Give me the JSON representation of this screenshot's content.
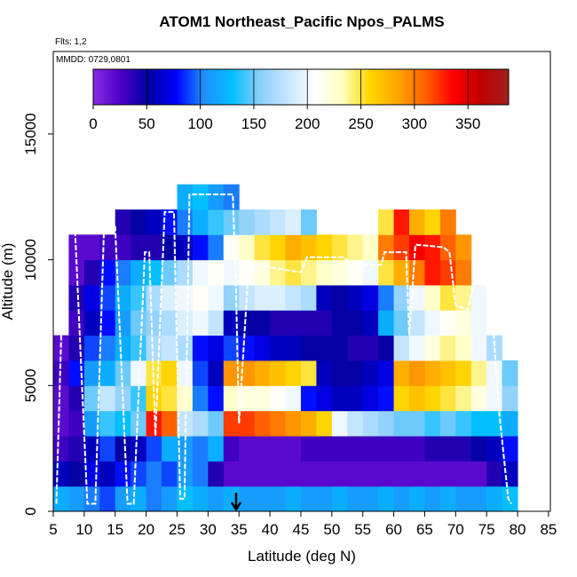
{
  "chart_data": {
    "type": "heatmap",
    "title": "ATOM1 Northeast_Pacific Npos_PALMS",
    "subtitle": "Flts: 1,2",
    "annotation": "MMDD: 0729,0801",
    "xlabel": "Latitude (deg N)",
    "ylabel": "Altitude (m)",
    "xlim": [
      5,
      85.3
    ],
    "ylim": [
      0,
      18280
    ],
    "xticks": [
      5,
      10,
      15,
      20,
      25,
      30,
      35,
      40,
      45,
      50,
      55,
      60,
      65,
      70,
      75,
      80,
      85
    ],
    "yticks": [
      0,
      5000,
      10000,
      15000
    ],
    "clim": [
      0,
      388
    ],
    "cticks": [
      0,
      50,
      100,
      150,
      200,
      250,
      300,
      350
    ],
    "colorscale": [
      "#8a2be2",
      "#4b00c8",
      "#0000a0",
      "#0000ff",
      "#1e90ff",
      "#00bfff",
      "#87cefa",
      "#c6e6ff",
      "#ffffff",
      "#ffffc0",
      "#ffd700",
      "#ffa500",
      "#ff6000",
      "#ff0000",
      "#c00000",
      "#a02020"
    ],
    "x_edges": [
      5,
      7.5,
      10,
      12.5,
      15,
      17.5,
      20,
      22.5,
      25,
      27.5,
      30,
      32.5,
      35,
      37.5,
      40,
      42.5,
      45,
      47.5,
      50,
      52.5,
      55,
      57.5,
      60,
      62.5,
      65,
      67.5,
      70,
      72.5,
      75,
      77.5,
      80
    ],
    "y_edges": [
      0,
      1000,
      2000,
      3000,
      4000,
      5000,
      6000,
      7000,
      8000,
      9000,
      10000,
      11000,
      12000,
      13000
    ],
    "values": [
      [
        120,
        110,
        100,
        90,
        110,
        120,
        100,
        110,
        130,
        120,
        110,
        120,
        110,
        110,
        110,
        120,
        110,
        110,
        120,
        110,
        110,
        120,
        110,
        120,
        110,
        120,
        110,
        110,
        120,
        130
      ],
      [
        60,
        50,
        70,
        60,
        80,
        90,
        100,
        90,
        110,
        100,
        40,
        20,
        20,
        20,
        20,
        20,
        20,
        20,
        20,
        20,
        20,
        20,
        20,
        20,
        20,
        20,
        20,
        20,
        40,
        60
      ],
      [
        30,
        40,
        60,
        90,
        50,
        60,
        90,
        120,
        110,
        100,
        120,
        30,
        20,
        20,
        20,
        20,
        30,
        30,
        30,
        30,
        30,
        30,
        30,
        30,
        40,
        40,
        40,
        50,
        60,
        80
      ],
      [
        20,
        30,
        110,
        140,
        130,
        150,
        330,
        310,
        180,
        170,
        150,
        320,
        320,
        310,
        300,
        290,
        280,
        260,
        200,
        180,
        170,
        160,
        150,
        150,
        140,
        150,
        140,
        130,
        130,
        120
      ],
      [
        20,
        40,
        150,
        180,
        160,
        140,
        260,
        250,
        230,
        100,
        80,
        230,
        220,
        220,
        210,
        200,
        80,
        70,
        60,
        60,
        70,
        80,
        260,
        270,
        260,
        250,
        240,
        220,
        200,
        160
      ],
      [
        30,
        80,
        110,
        120,
        150,
        200,
        250,
        260,
        200,
        90,
        60,
        290,
        290,
        280,
        270,
        260,
        250,
        60,
        50,
        50,
        60,
        70,
        280,
        290,
        280,
        270,
        260,
        240,
        200,
        150
      ],
      [
        20,
        40,
        90,
        100,
        120,
        140,
        170,
        180,
        170,
        80,
        70,
        90,
        80,
        70,
        60,
        60,
        50,
        50,
        50,
        40,
        40,
        50,
        180,
        200,
        220,
        240,
        230,
        200,
        170,
        null
      ],
      [
        null,
        30,
        60,
        80,
        110,
        150,
        160,
        170,
        190,
        200,
        180,
        60,
        50,
        50,
        40,
        40,
        40,
        40,
        50,
        50,
        60,
        120,
        150,
        180,
        200,
        210,
        220,
        200,
        null,
        null
      ],
      [
        null,
        40,
        70,
        90,
        120,
        140,
        170,
        190,
        200,
        210,
        200,
        160,
        180,
        190,
        190,
        180,
        170,
        60,
        50,
        60,
        70,
        100,
        160,
        200,
        230,
        250,
        240,
        200,
        null,
        null
      ],
      [
        null,
        20,
        40,
        80,
        100,
        120,
        130,
        150,
        170,
        200,
        210,
        200,
        210,
        220,
        240,
        250,
        240,
        230,
        220,
        210,
        200,
        250,
        280,
        300,
        330,
        320,
        300,
        null,
        null,
        null
      ],
      [
        null,
        20,
        20,
        30,
        30,
        40,
        40,
        50,
        60,
        80,
        100,
        210,
        230,
        250,
        260,
        280,
        270,
        260,
        250,
        240,
        230,
        300,
        320,
        340,
        330,
        310,
        290,
        null,
        null,
        null
      ],
      [
        null,
        null,
        null,
        null,
        40,
        50,
        60,
        80,
        100,
        120,
        140,
        150,
        160,
        170,
        180,
        190,
        150,
        null,
        null,
        null,
        null,
        250,
        330,
        280,
        260,
        300,
        null,
        null,
        null,
        null
      ],
      [
        null,
        null,
        null,
        null,
        null,
        null,
        null,
        null,
        120,
        130,
        110,
        100,
        null,
        null,
        null,
        null,
        null,
        null,
        null,
        null,
        null,
        null,
        null,
        null,
        null,
        null,
        null,
        null,
        null,
        null
      ]
    ],
    "track": {
      "color": "#ffffff",
      "x": [
        5.5,
        6.8,
        8.5,
        10.5,
        11.8,
        13.2,
        15,
        17,
        18,
        19.8,
        20.5,
        21.5,
        23,
        24.5,
        25.5,
        26.2,
        27,
        34,
        34.5,
        35,
        36.5,
        37.5,
        45,
        46,
        52,
        53,
        58,
        58.5,
        62,
        62.5,
        63.5,
        68,
        69,
        70,
        72,
        74,
        76,
        77,
        78.5,
        79
      ],
      "y": [
        300,
        11300,
        11300,
        300,
        300,
        11300,
        11300,
        300,
        300,
        10300,
        10300,
        3000,
        11900,
        11900,
        500,
        500,
        12600,
        12600,
        9000,
        3500,
        9500,
        9800,
        9500,
        10100,
        10100,
        9800,
        9800,
        10300,
        10300,
        7000,
        10600,
        10500,
        10300,
        8200,
        8000,
        10400,
        7500,
        4000,
        500,
        300
      ]
    }
  }
}
